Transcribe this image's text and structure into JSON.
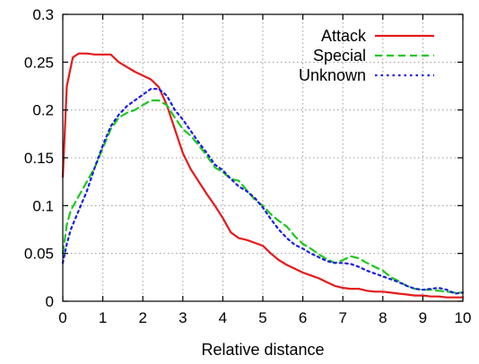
{
  "chart_data": {
    "type": "line",
    "xlabel": "Relative distance",
    "ylabel": "",
    "title": "",
    "xlim": [
      0,
      10
    ],
    "ylim": [
      0,
      0.3
    ],
    "xticks": [
      0,
      1,
      2,
      3,
      4,
      5,
      6,
      7,
      8,
      9,
      10
    ],
    "yticks": [
      0,
      0.05,
      0.1,
      0.15,
      0.2,
      0.25,
      0.3
    ],
    "xtick_labels": [
      "0",
      "1",
      "2",
      "3",
      "4",
      "5",
      "6",
      "7",
      "8",
      "9",
      "10"
    ],
    "ytick_labels": [
      "0",
      "0.05",
      "0.1",
      "0.15",
      "0.2",
      "0.25",
      "0.3"
    ],
    "grid": true,
    "legend_position": "top-right",
    "series": [
      {
        "name": "Attack",
        "color": "#e41a1c",
        "dash": "solid",
        "x": [
          0,
          0.1,
          0.25,
          0.4,
          0.6,
          0.8,
          1.0,
          1.2,
          1.4,
          1.6,
          1.8,
          2.0,
          2.2,
          2.4,
          2.6,
          2.8,
          3.0,
          3.2,
          3.4,
          3.6,
          3.8,
          4.0,
          4.2,
          4.4,
          4.6,
          4.8,
          5.0,
          5.2,
          5.4,
          5.6,
          5.8,
          6.0,
          6.2,
          6.4,
          6.6,
          6.8,
          7.0,
          7.2,
          7.4,
          7.6,
          7.8,
          8.0,
          8.2,
          8.4,
          8.6,
          8.8,
          9.0,
          9.2,
          9.4,
          9.6,
          9.8,
          10.0
        ],
        "y": [
          0.13,
          0.225,
          0.255,
          0.259,
          0.259,
          0.258,
          0.258,
          0.258,
          0.25,
          0.245,
          0.24,
          0.236,
          0.232,
          0.224,
          0.205,
          0.18,
          0.155,
          0.138,
          0.125,
          0.112,
          0.1,
          0.087,
          0.072,
          0.066,
          0.064,
          0.061,
          0.058,
          0.05,
          0.043,
          0.038,
          0.034,
          0.03,
          0.027,
          0.024,
          0.02,
          0.016,
          0.014,
          0.013,
          0.013,
          0.011,
          0.01,
          0.01,
          0.009,
          0.008,
          0.007,
          0.006,
          0.006,
          0.005,
          0.005,
          0.004,
          0.004,
          0.004
        ]
      },
      {
        "name": "Special",
        "color": "#1ec81e",
        "dash": "8 5",
        "x": [
          0,
          0.1,
          0.2,
          0.4,
          0.6,
          0.8,
          1.0,
          1.2,
          1.4,
          1.6,
          1.8,
          2.0,
          2.2,
          2.4,
          2.6,
          2.8,
          3.0,
          3.2,
          3.4,
          3.6,
          3.8,
          4.0,
          4.2,
          4.4,
          4.6,
          4.8,
          5.0,
          5.2,
          5.4,
          5.6,
          5.8,
          6.0,
          6.2,
          6.4,
          6.6,
          6.8,
          7.0,
          7.2,
          7.4,
          7.6,
          7.8,
          8.0,
          8.2,
          8.4,
          8.6,
          8.8,
          9.0,
          9.2,
          9.4,
          9.6,
          9.8,
          10.0
        ],
        "y": [
          0.05,
          0.08,
          0.095,
          0.11,
          0.125,
          0.14,
          0.16,
          0.18,
          0.192,
          0.197,
          0.2,
          0.205,
          0.21,
          0.21,
          0.205,
          0.192,
          0.18,
          0.173,
          0.163,
          0.152,
          0.14,
          0.135,
          0.128,
          0.126,
          0.116,
          0.106,
          0.1,
          0.091,
          0.084,
          0.078,
          0.068,
          0.06,
          0.055,
          0.049,
          0.044,
          0.04,
          0.043,
          0.047,
          0.045,
          0.04,
          0.036,
          0.032,
          0.025,
          0.021,
          0.016,
          0.013,
          0.012,
          0.012,
          0.011,
          0.01,
          0.009,
          0.009
        ]
      },
      {
        "name": "Unknown",
        "color": "#1a1ae6",
        "dash": "2.5 4",
        "x": [
          0,
          0.1,
          0.2,
          0.4,
          0.6,
          0.8,
          1.0,
          1.2,
          1.4,
          1.6,
          1.8,
          2.0,
          2.2,
          2.4,
          2.6,
          2.8,
          3.0,
          3.2,
          3.4,
          3.6,
          3.8,
          4.0,
          4.2,
          4.4,
          4.6,
          4.8,
          5.0,
          5.2,
          5.4,
          5.6,
          5.8,
          6.0,
          6.2,
          6.4,
          6.6,
          6.8,
          7.0,
          7.2,
          7.4,
          7.6,
          7.8,
          8.0,
          8.2,
          8.4,
          8.6,
          8.8,
          9.0,
          9.2,
          9.4,
          9.6,
          9.8,
          10.0
        ],
        "y": [
          0.04,
          0.06,
          0.075,
          0.095,
          0.115,
          0.14,
          0.163,
          0.183,
          0.195,
          0.204,
          0.21,
          0.216,
          0.222,
          0.222,
          0.215,
          0.2,
          0.19,
          0.178,
          0.166,
          0.155,
          0.143,
          0.137,
          0.128,
          0.12,
          0.115,
          0.108,
          0.098,
          0.086,
          0.075,
          0.066,
          0.059,
          0.055,
          0.05,
          0.046,
          0.042,
          0.04,
          0.04,
          0.039,
          0.036,
          0.032,
          0.029,
          0.026,
          0.023,
          0.02,
          0.016,
          0.013,
          0.012,
          0.013,
          0.014,
          0.012,
          0.008,
          0.009
        ]
      }
    ]
  }
}
